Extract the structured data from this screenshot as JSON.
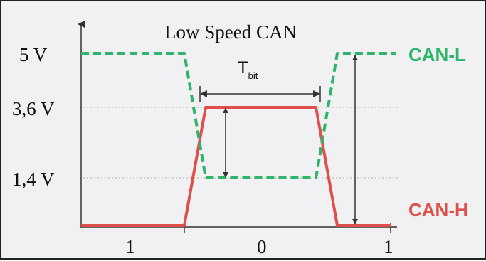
{
  "title": "Low Speed CAN",
  "voltage_labels": {
    "v5": "5 V",
    "v36": "3,6 V",
    "v14": "1,4 V"
  },
  "signals": {
    "can_l": {
      "label": "CAN-L",
      "color": "#2db56a",
      "style": "dashed"
    },
    "can_h": {
      "label": "CAN-H",
      "color": "#e0504a",
      "style": "solid"
    }
  },
  "bit_time": {
    "label_main": "T",
    "label_sub": "bit"
  },
  "bit_values": [
    "1",
    "0",
    "1"
  ],
  "colors": {
    "background": "#f1f1f4",
    "axis": "#333333",
    "gridline": "#aaaaaa",
    "can_l": "#2db56a",
    "can_h": "#e0504a"
  }
}
